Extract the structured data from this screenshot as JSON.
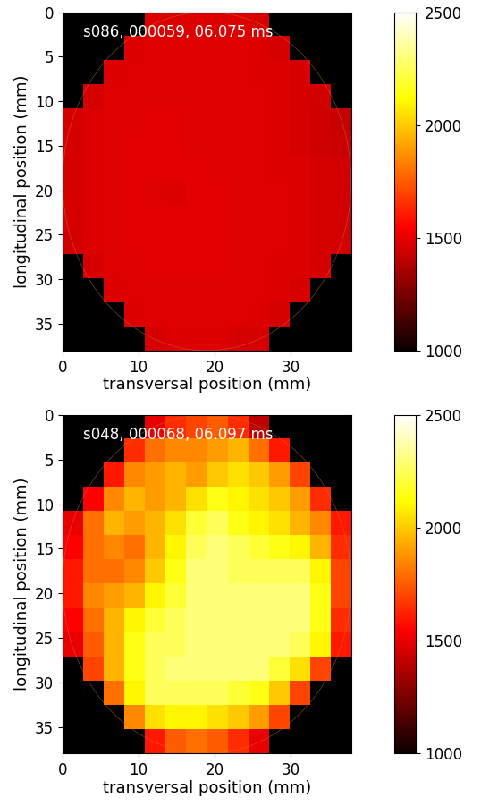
{
  "chart_data": [
    {
      "type": "heatmap",
      "annotation": "s086, 000059, 06.075 ms",
      "x_label": "transversal position (mm)",
      "y_label": "longitudinal position (mm)",
      "xlim": [
        0,
        38
      ],
      "ylim": [
        38,
        0
      ],
      "xticks": [
        0,
        10,
        20,
        30
      ],
      "yticks": [
        0,
        5,
        10,
        15,
        20,
        25,
        30,
        35
      ],
      "colorbar_lim": [
        1000,
        2500
      ],
      "colorbar_ticks": [
        1000,
        1500,
        2000,
        2500
      ],
      "cells": [
        [
          null,
          null,
          null,
          null,
          1470,
          1470,
          1470,
          1470,
          1470,
          1460,
          null,
          null,
          null,
          null
        ],
        [
          null,
          null,
          null,
          1470,
          1480,
          1480,
          1480,
          1480,
          1480,
          1470,
          1460,
          null,
          null,
          null
        ],
        [
          null,
          null,
          1470,
          1480,
          1480,
          1480,
          1480,
          1480,
          1480,
          1470,
          1470,
          1460,
          null,
          null
        ],
        [
          null,
          1460,
          1480,
          1480,
          1480,
          1480,
          1480,
          1480,
          1480,
          1480,
          1470,
          1460,
          1450,
          null
        ],
        [
          1460,
          1470,
          1480,
          1480,
          1490,
          1490,
          1480,
          1480,
          1480,
          1480,
          1470,
          1460,
          1440,
          1420
        ],
        [
          1460,
          1470,
          1480,
          1490,
          1490,
          1490,
          1480,
          1480,
          1480,
          1480,
          1470,
          1460,
          1440,
          1430
        ],
        [
          1460,
          1470,
          1480,
          1490,
          1490,
          1490,
          1490,
          1480,
          1480,
          1480,
          1470,
          1470,
          1460,
          1450
        ],
        [
          1460,
          1470,
          1480,
          1490,
          1480,
          1470,
          1490,
          1490,
          1480,
          1480,
          1480,
          1470,
          1460,
          1450
        ],
        [
          1460,
          1470,
          1480,
          1490,
          1490,
          1490,
          1490,
          1490,
          1480,
          1480,
          1480,
          1470,
          1460,
          1450
        ],
        [
          1450,
          1470,
          1480,
          1490,
          1490,
          1490,
          1490,
          1490,
          1480,
          1480,
          1480,
          1470,
          1460,
          1450
        ],
        [
          null,
          1460,
          1480,
          1480,
          1490,
          1490,
          1490,
          1490,
          1480,
          1480,
          1470,
          1470,
          1460,
          null
        ],
        [
          null,
          null,
          1470,
          1480,
          1480,
          1480,
          1480,
          1480,
          1480,
          1480,
          1470,
          1460,
          null,
          null
        ],
        [
          null,
          null,
          null,
          1470,
          1480,
          1480,
          1480,
          1480,
          1480,
          1470,
          1460,
          null,
          null,
          null
        ],
        [
          null,
          null,
          null,
          null,
          1460,
          1470,
          1470,
          1470,
          1460,
          1460,
          null,
          null,
          null,
          null
        ]
      ]
    },
    {
      "type": "heatmap",
      "annotation": "s048, 000068, 06.097 ms",
      "x_label": "transversal position (mm)",
      "y_label": "longitudinal position (mm)",
      "xlim": [
        0,
        38
      ],
      "ylim": [
        38,
        0
      ],
      "xticks": [
        0,
        10,
        20,
        30
      ],
      "yticks": [
        0,
        5,
        10,
        15,
        20,
        25,
        30,
        35
      ],
      "colorbar_lim": [
        1000,
        2500
      ],
      "colorbar_ticks": [
        1000,
        1500,
        2000,
        2500
      ],
      "cells": [
        [
          null,
          null,
          null,
          null,
          1500,
          1650,
          1700,
          1750,
          1650,
          1400,
          null,
          null,
          null,
          null
        ],
        [
          null,
          null,
          null,
          1650,
          1800,
          1850,
          1850,
          1900,
          1950,
          1800,
          1600,
          null,
          null,
          null
        ],
        [
          null,
          null,
          1600,
          1850,
          1900,
          1950,
          1900,
          2000,
          2050,
          2000,
          1900,
          1700,
          null,
          null
        ],
        [
          null,
          1550,
          1850,
          1950,
          1900,
          1950,
          2050,
          2150,
          2100,
          2050,
          2000,
          1900,
          1650,
          null
        ],
        [
          1500,
          1800,
          1950,
          1900,
          1950,
          2050,
          2200,
          2250,
          2150,
          2100,
          2050,
          1950,
          1850,
          1600
        ],
        [
          1550,
          1800,
          1850,
          1800,
          1950,
          2100,
          2250,
          2300,
          2250,
          2200,
          2150,
          2100,
          1950,
          1650
        ],
        [
          1600,
          1800,
          1800,
          1850,
          2000,
          2150,
          2300,
          2300,
          2250,
          2250,
          2250,
          2250,
          2100,
          1700
        ],
        [
          1600,
          1850,
          1900,
          1950,
          2100,
          2200,
          2300,
          2300,
          2300,
          2300,
          2300,
          2300,
          2150,
          1700
        ],
        [
          1550,
          1800,
          1950,
          2100,
          2200,
          2250,
          2300,
          2300,
          2300,
          2300,
          2300,
          2300,
          2150,
          1650
        ],
        [
          1500,
          1750,
          1950,
          2150,
          2250,
          2250,
          2300,
          2300,
          2300,
          2300,
          2300,
          2250,
          2100,
          1600
        ],
        [
          null,
          1700,
          1950,
          2150,
          2250,
          2300,
          2300,
          2300,
          2300,
          2300,
          2200,
          2050,
          1700,
          null
        ],
        [
          null,
          null,
          1800,
          2100,
          2250,
          2250,
          2250,
          2250,
          2200,
          2150,
          2000,
          1700,
          null,
          null
        ],
        [
          null,
          null,
          null,
          1850,
          2050,
          2100,
          2100,
          2050,
          2000,
          1900,
          1700,
          null,
          null,
          null
        ],
        [
          null,
          null,
          null,
          null,
          1600,
          1750,
          1800,
          1750,
          1650,
          1500,
          null,
          null,
          null,
          null
        ]
      ]
    }
  ]
}
